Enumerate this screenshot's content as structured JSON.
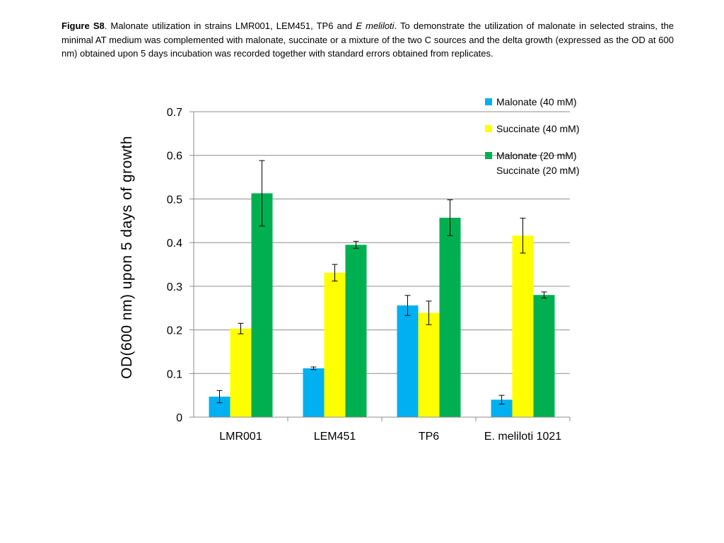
{
  "caption": {
    "label": "Figure S8",
    "text_before_italic": ". Malonate utilization in strains LMR001, LEM451, TP6 and ",
    "italic": "E meliloti",
    "text_after_italic": ". To demonstrate the utilization of malonate in selected strains, the minimal AT medium was complemented with malonate, succinate or a mixture of the two C sources and the delta growth (expressed as the OD at 600 nm) obtained upon 5 days incubation was recorded  together with standard errors obtained from replicates."
  },
  "chart_data": {
    "type": "bar",
    "title": "",
    "xlabel": "",
    "ylabel": "OD(600 nm) upon 5 days of growth",
    "ylim": [
      0,
      0.7
    ],
    "yticks": [
      0,
      0.1,
      0.2,
      0.3,
      0.4,
      0.5,
      0.6,
      0.7
    ],
    "ytick_labels": [
      "0",
      "0.1",
      "0.2",
      "0.3",
      "0.4",
      "0.5",
      "0.6",
      "0.7"
    ],
    "grid": true,
    "legend_position": "top-right",
    "categories": [
      "LMR001",
      "LEM451",
      "TP6",
      "E. meliloti  1021"
    ],
    "series": [
      {
        "name": "Malonate (40 mM)",
        "color": "#00B0F0",
        "values": [
          0.047,
          0.112,
          0.256,
          0.04
        ],
        "errors": [
          0.014,
          0.003,
          0.023,
          0.01
        ]
      },
      {
        "name": "Succinate (40 mM)",
        "color": "#FFFF00",
        "values": [
          0.203,
          0.331,
          0.239,
          0.416
        ],
        "errors": [
          0.012,
          0.019,
          0.027,
          0.04
        ]
      },
      {
        "name": "Malonate (20 mM)",
        "name_line2": "Succinate (20 mM)",
        "color": "#00B050",
        "values": [
          0.513,
          0.395,
          0.457,
          0.28
        ],
        "errors": [
          0.075,
          0.008,
          0.041,
          0.007
        ]
      }
    ]
  }
}
